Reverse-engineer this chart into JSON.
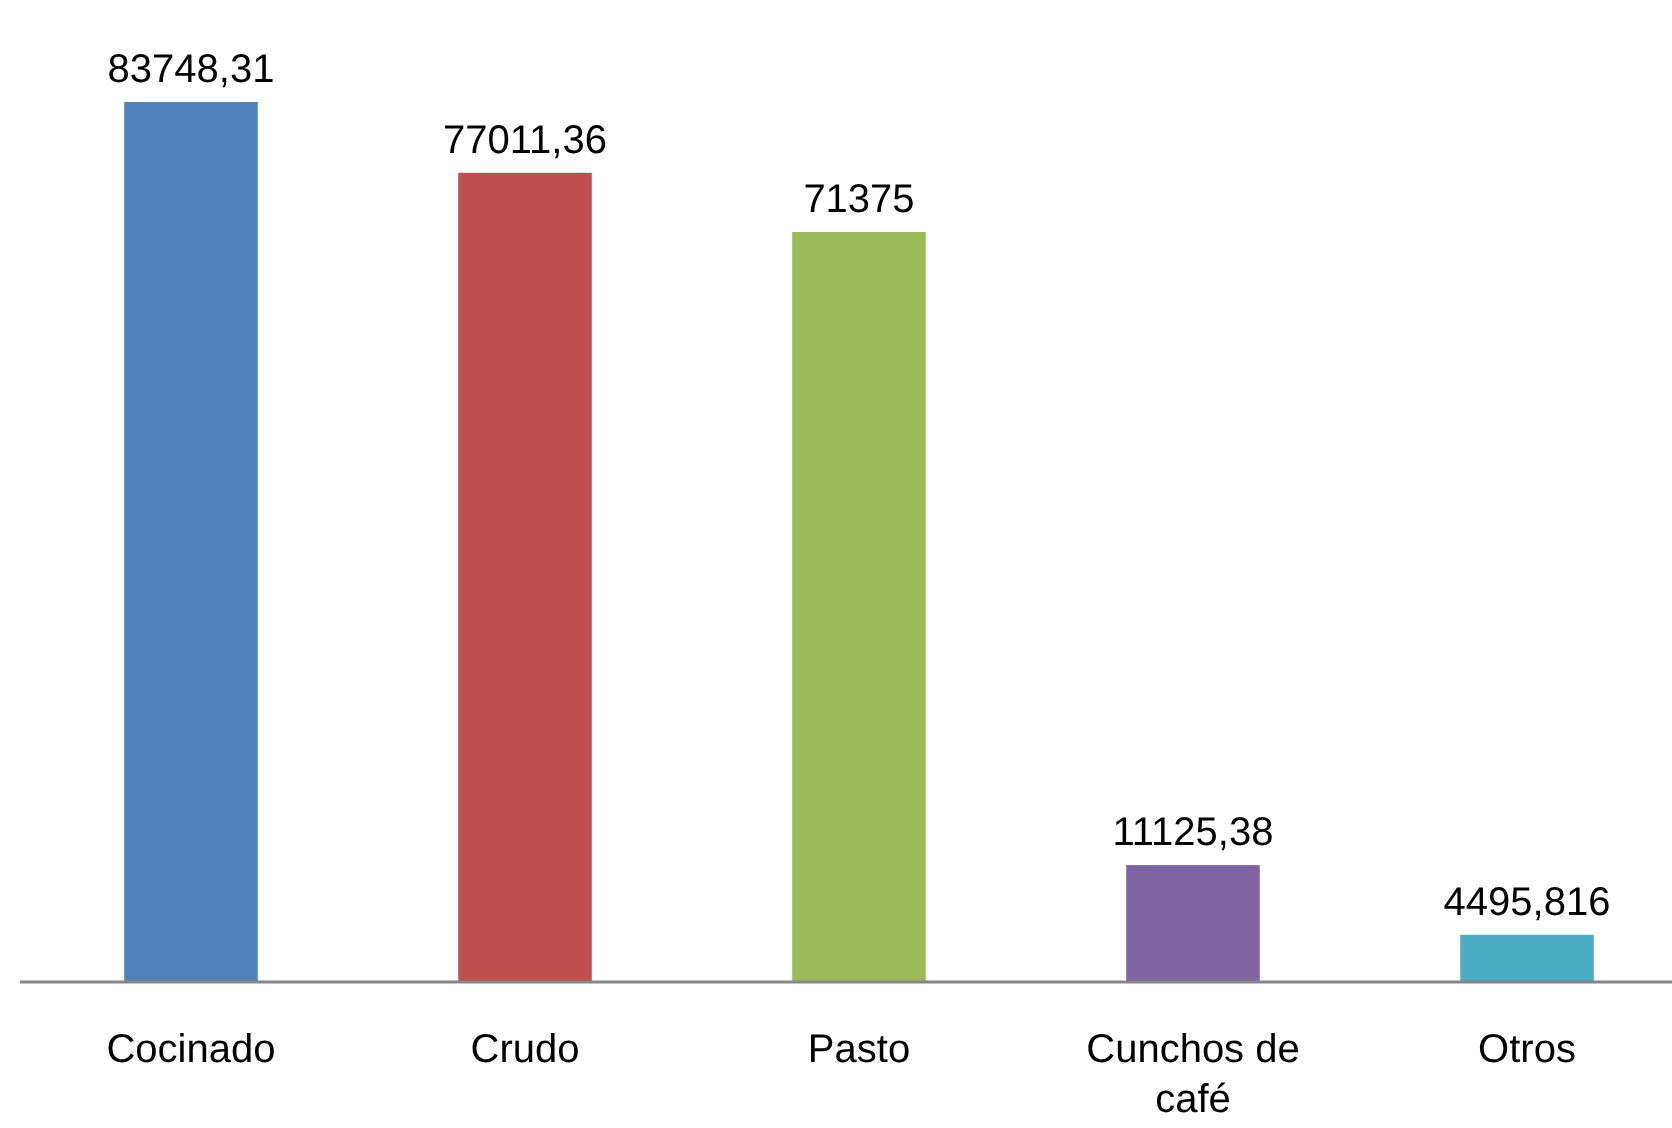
{
  "chart_data": {
    "type": "bar",
    "categories": [
      "Cocinado",
      "Crudo",
      "Pasto",
      "Cunchos de café",
      "Otros"
    ],
    "values": [
      83748.31,
      77011.36,
      71375,
      11125.38,
      4495.816
    ],
    "colors": [
      "#4f81bd",
      "#c0504d",
      "#9bbb59",
      "#8064a2",
      "#4bacc6"
    ],
    "value_labels": [
      "83748,31",
      "77011,36",
      "71375",
      "11125,38",
      "4495,816"
    ]
  }
}
